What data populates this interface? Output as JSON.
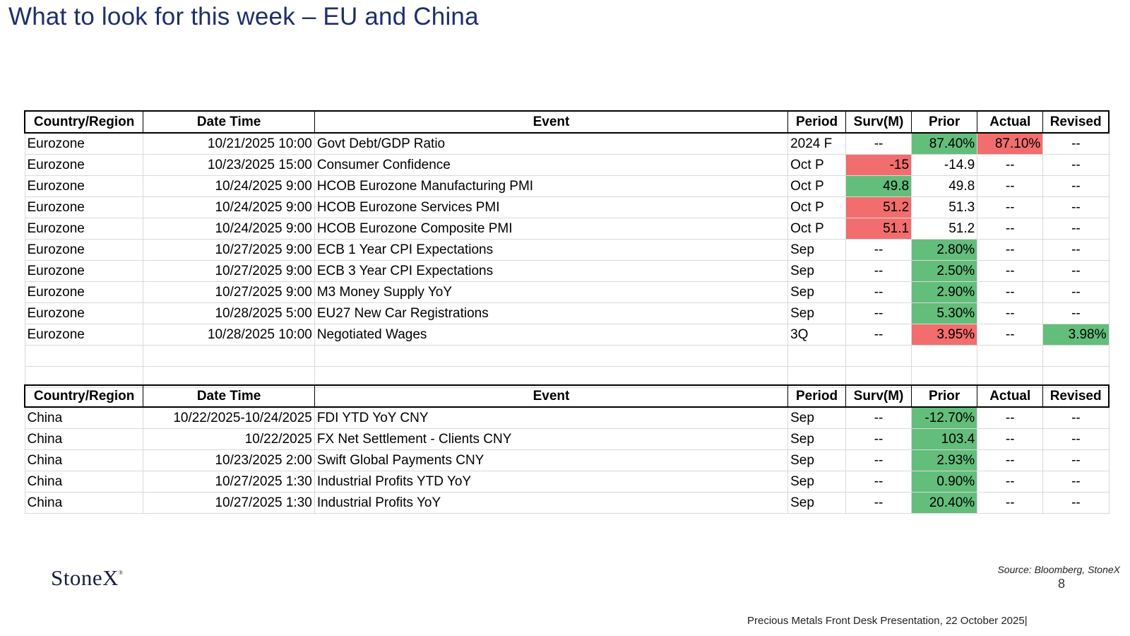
{
  "title": "What to look for this week – EU and China",
  "columns": [
    "Country/Region",
    "Date Time",
    "Event",
    "Period",
    "Surv(M)",
    "Prior",
    "Actual",
    "Revised"
  ],
  "colors": {
    "red": "#f26d6d",
    "green": "#63be7b",
    "title": "#1f2e6b"
  },
  "eu_rows": [
    {
      "country": "Eurozone",
      "datetime": "10/21/2025 10:00",
      "event": "Govt Debt/GDP Ratio",
      "period": "2024 F",
      "surv": "--",
      "prior": "87.40%",
      "actual": "87.10%",
      "revised": "--",
      "surv_color": "",
      "prior_color": "green",
      "actual_color": "red",
      "revised_color": ""
    },
    {
      "country": "Eurozone",
      "datetime": "10/23/2025 15:00",
      "event": "Consumer Confidence",
      "period": "Oct P",
      "surv": "-15",
      "prior": "-14.9",
      "actual": "--",
      "revised": "--",
      "surv_color": "red",
      "prior_color": "",
      "actual_color": "",
      "revised_color": ""
    },
    {
      "country": "Eurozone",
      "datetime": "10/24/2025 9:00",
      "event": "HCOB Eurozone Manufacturing PMI",
      "period": "Oct P",
      "surv": "49.8",
      "prior": "49.8",
      "actual": "--",
      "revised": "--",
      "surv_color": "green",
      "prior_color": "",
      "actual_color": "",
      "revised_color": ""
    },
    {
      "country": "Eurozone",
      "datetime": "10/24/2025 9:00",
      "event": "HCOB Eurozone Services PMI",
      "period": "Oct P",
      "surv": "51.2",
      "prior": "51.3",
      "actual": "--",
      "revised": "--",
      "surv_color": "red",
      "prior_color": "",
      "actual_color": "",
      "revised_color": ""
    },
    {
      "country": "Eurozone",
      "datetime": "10/24/2025 9:00",
      "event": "HCOB Eurozone Composite PMI",
      "period": "Oct P",
      "surv": "51.1",
      "prior": "51.2",
      "actual": "--",
      "revised": "--",
      "surv_color": "red",
      "prior_color": "",
      "actual_color": "",
      "revised_color": ""
    },
    {
      "country": "Eurozone",
      "datetime": "10/27/2025 9:00",
      "event": "ECB 1 Year CPI Expectations",
      "period": "Sep",
      "surv": "--",
      "prior": "2.80%",
      "actual": "--",
      "revised": "--",
      "surv_color": "",
      "prior_color": "green",
      "actual_color": "",
      "revised_color": ""
    },
    {
      "country": "Eurozone",
      "datetime": "10/27/2025 9:00",
      "event": "ECB 3 Year CPI Expectations",
      "period": "Sep",
      "surv": "--",
      "prior": "2.50%",
      "actual": "--",
      "revised": "--",
      "surv_color": "",
      "prior_color": "green",
      "actual_color": "",
      "revised_color": ""
    },
    {
      "country": "Eurozone",
      "datetime": "10/27/2025 9:00",
      "event": "M3 Money Supply YoY",
      "period": "Sep",
      "surv": "--",
      "prior": "2.90%",
      "actual": "--",
      "revised": "--",
      "surv_color": "",
      "prior_color": "green",
      "actual_color": "",
      "revised_color": ""
    },
    {
      "country": "Eurozone",
      "datetime": "10/28/2025 5:00",
      "event": "EU27 New Car Registrations",
      "period": "Sep",
      "surv": "--",
      "prior": "5.30%",
      "actual": "--",
      "revised": "--",
      "surv_color": "",
      "prior_color": "green",
      "actual_color": "",
      "revised_color": ""
    },
    {
      "country": "Eurozone",
      "datetime": "10/28/2025 10:00",
      "event": "Negotiated Wages",
      "period": "3Q",
      "surv": "--",
      "prior": "3.95%",
      "actual": "--",
      "revised": "3.98%",
      "surv_color": "",
      "prior_color": "red",
      "actual_color": "",
      "revised_color": "green"
    }
  ],
  "china_rows": [
    {
      "country": "China",
      "datetime": "10/22/2025-10/24/2025",
      "event": "FDI YTD YoY CNY",
      "period": "Sep",
      "surv": "--",
      "prior": "-12.70%",
      "actual": "--",
      "revised": "--",
      "surv_color": "",
      "prior_color": "green",
      "actual_color": "",
      "revised_color": ""
    },
    {
      "country": "China",
      "datetime": "10/22/2025",
      "event": "FX Net Settlement - Clients CNY",
      "period": "Sep",
      "surv": "--",
      "prior": "103.4",
      "actual": "--",
      "revised": "--",
      "surv_color": "",
      "prior_color": "green",
      "actual_color": "",
      "revised_color": ""
    },
    {
      "country": "China",
      "datetime": "10/23/2025 2:00",
      "event": "Swift Global Payments CNY",
      "period": "Sep",
      "surv": "--",
      "prior": "2.93%",
      "actual": "--",
      "revised": "--",
      "surv_color": "",
      "prior_color": "green",
      "actual_color": "",
      "revised_color": ""
    },
    {
      "country": "China",
      "datetime": "10/27/2025 1:30",
      "event": "Industrial Profits YTD YoY",
      "period": "Sep",
      "surv": "--",
      "prior": "0.90%",
      "actual": "--",
      "revised": "--",
      "surv_color": "",
      "prior_color": "green",
      "actual_color": "",
      "revised_color": ""
    },
    {
      "country": "China",
      "datetime": "10/27/2025 1:30",
      "event": "Industrial Profits YoY",
      "period": "Sep",
      "surv": "--",
      "prior": "20.40%",
      "actual": "--",
      "revised": "--",
      "surv_color": "",
      "prior_color": "green",
      "actual_color": "",
      "revised_color": ""
    }
  ],
  "footer": {
    "logo": "StoneX",
    "logo_mark": "®",
    "source": "Source: Bloomberg, StoneX",
    "page_number": "8",
    "presentation": "Precious Metals Front Desk Presentation, 22 October 2025|"
  }
}
